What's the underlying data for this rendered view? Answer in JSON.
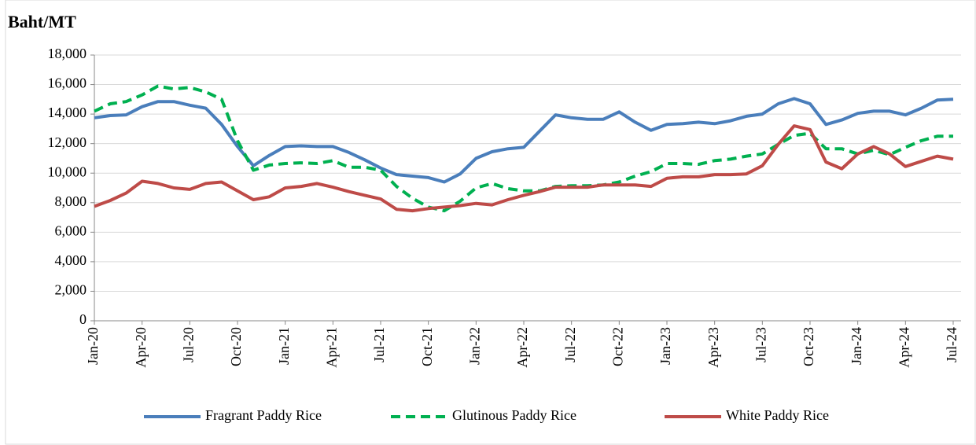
{
  "chart_data": {
    "type": "line",
    "y_label": "Baht/MT",
    "categories": [
      "Jan-20",
      null,
      null,
      "Apr-20",
      null,
      null,
      "Jul-20",
      null,
      null,
      "Oct-20",
      null,
      null,
      "Jan-21",
      null,
      null,
      "Apr-21",
      null,
      null,
      "Jul-21",
      null,
      null,
      "Oct-21",
      null,
      null,
      "Jan-22",
      null,
      null,
      "Apr-22",
      null,
      null,
      "Jul-22",
      null,
      null,
      "Oct-22",
      null,
      null,
      "Jan-23",
      null,
      null,
      "Apr-23",
      null,
      null,
      "Jul-23",
      null,
      null,
      "Oct-23",
      null,
      null,
      "Jan-24",
      null,
      null,
      "Apr-24",
      null,
      null,
      "Jul-24"
    ],
    "series": [
      {
        "name": "Fragrant Paddy Rice",
        "color": "#4a7ebb",
        "dash": false,
        "values": [
          13750,
          13900,
          13950,
          14500,
          14850,
          14850,
          14600,
          14400,
          13300,
          11800,
          10500,
          11200,
          11800,
          11850,
          11800,
          11800,
          11400,
          10900,
          10350,
          9900,
          9800,
          9700,
          9400,
          9950,
          11000,
          11450,
          11650,
          11750,
          12850,
          13950,
          13750,
          13650,
          13650,
          14150,
          13450,
          12900,
          13300,
          13350,
          13450,
          13350,
          13550,
          13850,
          14000,
          14700,
          15050,
          14700,
          13300,
          13600,
          14050,
          14200,
          14200,
          13950,
          14400,
          14950,
          15000
        ]
      },
      {
        "name": "Glutinous Paddy Rice",
        "color": "#00b050",
        "dash": true,
        "values": [
          14200,
          14700,
          14850,
          15300,
          15900,
          15700,
          15800,
          15500,
          15000,
          12200,
          10200,
          10550,
          10650,
          10700,
          10650,
          10850,
          10400,
          10400,
          10200,
          9100,
          8300,
          7700,
          7450,
          8100,
          9000,
          9300,
          8950,
          8800,
          8800,
          9100,
          9150,
          9150,
          9200,
          9400,
          9800,
          10100,
          10650,
          10650,
          10600,
          10850,
          10950,
          11150,
          11300,
          11950,
          12550,
          12700,
          11650,
          11650,
          11300,
          11550,
          11250,
          11750,
          12200,
          12500,
          12500
        ]
      },
      {
        "name": "White Paddy Rice",
        "color": "#be4b48",
        "dash": false,
        "values": [
          7750,
          8150,
          8650,
          9450,
          9300,
          9000,
          8900,
          9300,
          9400,
          8800,
          8200,
          8400,
          9000,
          9100,
          9300,
          9050,
          8750,
          8500,
          8250,
          7550,
          7450,
          7600,
          7700,
          7800,
          7950,
          7850,
          8200,
          8500,
          8750,
          9050,
          9050,
          9050,
          9200,
          9200,
          9200,
          9100,
          9650,
          9750,
          9750,
          9900,
          9900,
          9950,
          10500,
          11950,
          13200,
          12950,
          10750,
          10300,
          11300,
          11800,
          11300,
          10450,
          10800,
          11150,
          10950
        ]
      }
    ],
    "ylim": [
      0,
      18000
    ],
    "yticks": [
      0,
      {
        "value": 2000,
        "label": "2,000"
      },
      {
        "value": 4000,
        "label": "4,000"
      },
      {
        "value": 6000,
        "label": "6,000"
      },
      {
        "value": 8000,
        "label": "8,000"
      },
      {
        "value": 10000,
        "label": "10,000"
      },
      {
        "value": 12000,
        "label": "12,000"
      },
      {
        "value": 14000,
        "label": "14,000"
      },
      {
        "value": 16000,
        "label": "16,000"
      },
      {
        "value": 18000,
        "label": "18,000"
      }
    ],
    "grid": true,
    "legend": "bottom"
  }
}
